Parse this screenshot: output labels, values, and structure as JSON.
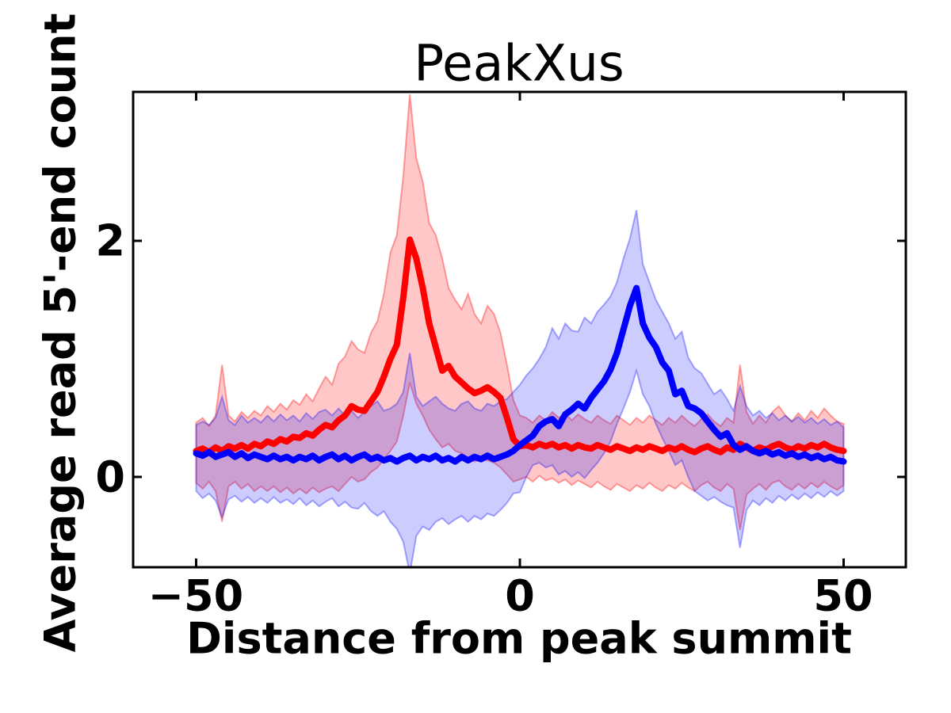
{
  "chart_data": {
    "type": "line",
    "title": "PeakXus",
    "xlabel": "Distance from peak summit",
    "ylabel": "Average read 5'-end count",
    "xlim": [
      -59.7,
      59.6
    ],
    "ylim": [
      -0.77,
      3.26
    ],
    "xticks": [
      -50,
      0,
      50
    ],
    "yticks": [
      0,
      2
    ],
    "xtick_labels": [
      "−50",
      "0",
      "50"
    ],
    "ytick_labels": [
      "0",
      "2"
    ],
    "grid": false,
    "legend": "none",
    "x_start": -50,
    "x_step": 1,
    "series": [
      {
        "key": "red",
        "name": "red line (mean with shaded band)",
        "color": "#ff0000",
        "band_fill": "rgba(255,0,0,0.22)",
        "band_edge": "rgba(255,0,0,0.35)",
        "peak_x": -17,
        "peak_value": 2.01,
        "values": [
          0.22,
          0.24,
          0.21,
          0.25,
          0.22,
          0.26,
          0.24,
          0.27,
          0.24,
          0.28,
          0.26,
          0.3,
          0.28,
          0.32,
          0.3,
          0.34,
          0.33,
          0.37,
          0.35,
          0.4,
          0.44,
          0.42,
          0.48,
          0.52,
          0.6,
          0.57,
          0.56,
          0.64,
          0.72,
          0.85,
          1.0,
          1.12,
          1.52,
          2.01,
          1.85,
          1.6,
          1.3,
          1.1,
          0.9,
          0.94,
          0.85,
          0.8,
          0.75,
          0.71,
          0.73,
          0.76,
          0.72,
          0.67,
          0.5,
          0.32,
          0.26,
          0.27,
          0.25,
          0.28,
          0.26,
          0.28,
          0.25,
          0.27,
          0.24,
          0.27,
          0.25,
          0.24,
          0.27,
          0.25,
          0.23,
          0.26,
          0.24,
          0.22,
          0.25,
          0.23,
          0.26,
          0.24,
          0.22,
          0.25,
          0.23,
          0.26,
          0.23,
          0.21,
          0.24,
          0.26,
          0.23,
          0.21,
          0.25,
          0.23,
          0.28,
          0.25,
          0.22,
          0.25,
          0.23,
          0.26,
          0.28,
          0.25,
          0.23,
          0.26,
          0.24,
          0.27,
          0.25,
          0.28,
          0.25,
          0.23,
          0.22
        ],
        "band_upper": [
          0.46,
          0.5,
          0.43,
          0.52,
          0.95,
          0.52,
          0.47,
          0.55,
          0.5,
          0.56,
          0.52,
          0.6,
          0.55,
          0.62,
          0.57,
          0.65,
          0.61,
          0.7,
          0.64,
          0.75,
          0.85,
          0.78,
          0.96,
          1.02,
          1.15,
          1.08,
          1.05,
          1.22,
          1.32,
          1.55,
          1.9,
          2.05,
          2.55,
          3.24,
          2.7,
          2.5,
          2.15,
          2.05,
          1.85,
          1.6,
          1.5,
          1.42,
          1.55,
          1.38,
          1.3,
          1.45,
          1.38,
          1.22,
          0.95,
          0.65,
          0.52,
          0.5,
          0.46,
          0.52,
          0.48,
          0.55,
          0.5,
          0.54,
          0.48,
          0.53,
          0.49,
          0.46,
          0.52,
          0.48,
          0.45,
          0.52,
          0.48,
          0.44,
          0.5,
          0.46,
          0.52,
          0.48,
          0.44,
          0.5,
          0.46,
          0.52,
          0.47,
          0.43,
          0.49,
          0.53,
          0.47,
          0.43,
          0.5,
          0.46,
          0.95,
          0.55,
          0.45,
          0.52,
          0.46,
          0.55,
          0.6,
          0.52,
          0.47,
          0.54,
          0.48,
          0.56,
          0.5,
          0.58,
          0.52,
          0.47,
          0.45
        ],
        "band_lower": [
          -0.05,
          -0.1,
          -0.04,
          -0.12,
          -0.38,
          -0.08,
          -0.04,
          -0.1,
          -0.06,
          -0.12,
          -0.08,
          -0.12,
          -0.08,
          -0.13,
          -0.09,
          -0.14,
          -0.1,
          -0.14,
          -0.09,
          -0.13,
          -0.1,
          -0.08,
          -0.12,
          -0.06,
          0.0,
          -0.04,
          -0.02,
          0.04,
          0.08,
          0.15,
          0.22,
          0.3,
          0.52,
          0.8,
          0.62,
          0.52,
          0.4,
          0.32,
          0.25,
          0.28,
          0.22,
          0.2,
          0.16,
          0.13,
          0.15,
          0.14,
          0.12,
          0.08,
          0.02,
          -0.04,
          -0.02,
          0.0,
          -0.04,
          0.01,
          -0.03,
          -0.01,
          -0.05,
          -0.02,
          -0.07,
          -0.03,
          -0.06,
          -0.09,
          -0.04,
          -0.08,
          -0.11,
          -0.06,
          -0.09,
          -0.12,
          -0.07,
          -0.1,
          -0.05,
          -0.09,
          -0.12,
          -0.07,
          -0.1,
          -0.05,
          -0.09,
          -0.12,
          -0.07,
          -0.04,
          -0.09,
          -0.12,
          -0.06,
          -0.1,
          -0.45,
          -0.15,
          -0.1,
          -0.06,
          -0.11,
          -0.05,
          -0.03,
          -0.08,
          -0.11,
          -0.06,
          -0.1,
          -0.05,
          -0.09,
          -0.04,
          -0.08,
          -0.11,
          -0.07
        ]
      },
      {
        "key": "blue",
        "name": "blue line (mean with shaded band)",
        "color": "#0000ff",
        "band_fill": "rgba(0,0,255,0.20)",
        "band_edge": "rgba(0,0,255,0.32)",
        "peak_x": 18,
        "peak_value": 1.6,
        "values": [
          0.2,
          0.18,
          0.21,
          0.17,
          0.19,
          0.21,
          0.17,
          0.2,
          0.16,
          0.19,
          0.17,
          0.15,
          0.18,
          0.15,
          0.17,
          0.14,
          0.17,
          0.15,
          0.18,
          0.14,
          0.17,
          0.19,
          0.15,
          0.18,
          0.14,
          0.17,
          0.19,
          0.15,
          0.17,
          0.14,
          0.16,
          0.13,
          0.16,
          0.18,
          0.14,
          0.17,
          0.15,
          0.18,
          0.14,
          0.16,
          0.13,
          0.17,
          0.14,
          0.17,
          0.15,
          0.18,
          0.15,
          0.17,
          0.19,
          0.22,
          0.27,
          0.31,
          0.35,
          0.43,
          0.47,
          0.49,
          0.43,
          0.53,
          0.57,
          0.62,
          0.58,
          0.67,
          0.74,
          0.81,
          0.91,
          1.05,
          1.25,
          1.45,
          1.6,
          1.3,
          1.18,
          1.1,
          0.97,
          0.9,
          0.7,
          0.73,
          0.6,
          0.58,
          0.54,
          0.47,
          0.4,
          0.34,
          0.37,
          0.27,
          0.23,
          0.26,
          0.22,
          0.2,
          0.22,
          0.19,
          0.21,
          0.18,
          0.2,
          0.17,
          0.19,
          0.16,
          0.18,
          0.15,
          0.17,
          0.14,
          0.13
        ],
        "band_upper": [
          0.44,
          0.47,
          0.44,
          0.5,
          0.68,
          0.48,
          0.44,
          0.52,
          0.46,
          0.5,
          0.46,
          0.52,
          0.47,
          0.53,
          0.48,
          0.52,
          0.47,
          0.54,
          0.49,
          0.55,
          0.57,
          0.52,
          0.58,
          0.52,
          0.56,
          0.5,
          0.55,
          0.6,
          0.64,
          0.56,
          0.58,
          0.62,
          0.72,
          1.05,
          0.68,
          0.6,
          0.64,
          0.68,
          0.62,
          0.58,
          0.56,
          0.62,
          0.64,
          0.58,
          0.56,
          0.62,
          0.6,
          0.64,
          0.66,
          0.72,
          0.78,
          0.86,
          0.92,
          1.0,
          1.1,
          1.26,
          1.17,
          1.3,
          1.24,
          1.23,
          1.35,
          1.3,
          1.4,
          1.46,
          1.53,
          1.65,
          1.85,
          2.02,
          2.26,
          1.8,
          1.65,
          1.5,
          1.4,
          1.3,
          1.17,
          1.23,
          1.01,
          0.92,
          0.88,
          0.79,
          0.7,
          0.74,
          0.66,
          0.56,
          0.77,
          0.6,
          0.52,
          0.56,
          0.5,
          0.54,
          0.48,
          0.52,
          0.47,
          0.51,
          0.46,
          0.5,
          0.45,
          0.49,
          0.44,
          0.47,
          0.42
        ],
        "band_lower": [
          -0.12,
          -0.18,
          -0.14,
          -0.2,
          -0.34,
          -0.19,
          -0.16,
          -0.21,
          -0.17,
          -0.22,
          -0.18,
          -0.22,
          -0.17,
          -0.22,
          -0.19,
          -0.23,
          -0.18,
          -0.24,
          -0.2,
          -0.25,
          -0.21,
          -0.18,
          -0.25,
          -0.21,
          -0.26,
          -0.27,
          -0.22,
          -0.29,
          -0.33,
          -0.29,
          -0.38,
          -0.44,
          -0.55,
          -0.82,
          -0.5,
          -0.42,
          -0.45,
          -0.38,
          -0.35,
          -0.4,
          -0.36,
          -0.33,
          -0.38,
          -0.33,
          -0.36,
          -0.31,
          -0.33,
          -0.28,
          -0.22,
          -0.14,
          -0.13,
          0.0,
          0.1,
          0.12,
          0.08,
          0.1,
          0.02,
          0.05,
          0.0,
          0.04,
          -0.01,
          0.06,
          0.12,
          0.2,
          0.3,
          0.45,
          0.58,
          0.72,
          0.9,
          0.7,
          0.6,
          0.45,
          0.33,
          0.22,
          0.1,
          0.14,
          0.0,
          -0.12,
          -0.16,
          -0.2,
          -0.17,
          -0.21,
          -0.24,
          -0.26,
          -0.6,
          -0.28,
          -0.2,
          -0.24,
          -0.18,
          -0.22,
          -0.16,
          -0.2,
          -0.15,
          -0.19,
          -0.14,
          -0.18,
          -0.13,
          -0.17,
          -0.12,
          -0.16,
          -0.12
        ]
      }
    ]
  },
  "style_colors": {
    "axis": "#000000",
    "background": "#ffffff",
    "red_line": "#ff0000",
    "blue_line": "#0000ff",
    "red_band": "#ffc6c6",
    "blue_band": "#ccccff",
    "overlap_band": "#cc9fd2"
  }
}
